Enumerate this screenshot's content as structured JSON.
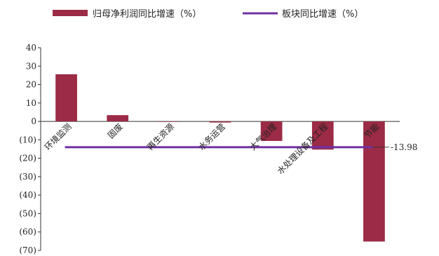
{
  "chart_data": {
    "type": "bar",
    "categories": [
      "环境监测",
      "固废",
      "再生资源",
      "水务运营",
      "大气治理",
      "水处理设备及工程",
      "节能"
    ],
    "series": [
      {
        "name": "归母净利润同比增速（%）",
        "type": "bar",
        "color": "#9B2B46",
        "values": [
          25.6,
          3.4,
          0.0,
          -0.6,
          -10.6,
          -15.3,
          -65.2
        ]
      },
      {
        "name": "板块同比增速（%）",
        "type": "line",
        "color": "#7030A0",
        "values": [
          -13.98,
          -13.98,
          -13.98,
          -13.98,
          -13.98,
          -13.98,
          -13.98
        ]
      }
    ],
    "yticks": [
      "40",
      "30",
      "20",
      "10",
      "0",
      "(10)",
      "(20)",
      "(30)",
      "(40)",
      "(50)",
      "(60)",
      "(70)"
    ],
    "ylim": [
      -70,
      40
    ],
    "annotation": "-13.98",
    "legend_position": "top"
  }
}
